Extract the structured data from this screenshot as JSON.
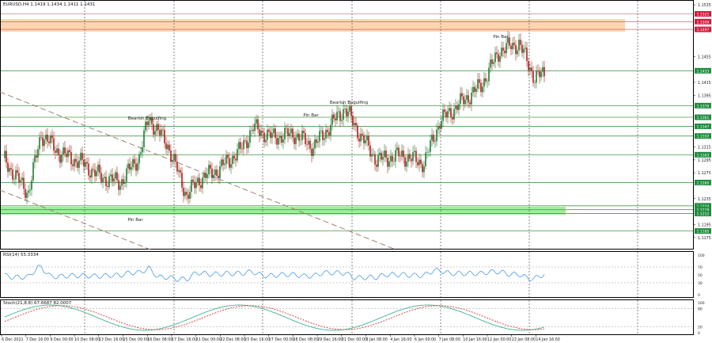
{
  "header": {
    "title": "EURUSD,H4  1.1419 1.1434 1.1411 1.1431"
  },
  "colors": {
    "bull": "#1e7d32",
    "bear": "#b71c1c",
    "level": "#4a9a4a",
    "zone_orange": "#ffd5b0",
    "zone_green": "#9cf09c",
    "red_label": "#d81b3c",
    "green_label": "#1e8e3e",
    "rsi": "#4d9be6",
    "stoch_main": "#3cb39a",
    "stoch_signal": "#d63a3a"
  },
  "chart_data": [
    {
      "type": "candlestick",
      "price_axis": {
        "ticks": [
          "1.1535",
          "1.1495",
          "1.1455",
          "1.1415",
          "1.1395",
          "1.1375",
          "1.1355",
          "1.1335",
          "1.1315",
          "1.1295",
          "1.1275",
          "1.1255",
          "1.1235",
          "1.1215",
          "1.1195",
          "1.1175"
        ],
        "range": [
          1.116,
          1.154
        ]
      },
      "time_axis": [
        "6 Dec 2021",
        "7 Dec 16:00",
        "9 Dec 00:00",
        "10 Dec 08:00",
        "13 Dec 16:00",
        "15 Dec 00:00",
        "16 Dec 08:00",
        "17 Dec 16:00",
        "21 Dec 00:00",
        "22 Dec 08:00",
        "23 Dec 16:00",
        "27 Dec 00:00",
        "28 Dec 08:00",
        "29 Dec 16:00",
        "31 Dec 00:00",
        "3 Jan 08:00",
        "4 Jan 16:00",
        "6 Jan 00:00",
        "7 Jan 08:00",
        "10 Jan 16:00",
        "12 Jan 00:00",
        "13 Jan 08:00",
        "14 Jan 16:00"
      ],
      "red_levels": [
        "1.1521",
        "1.1509",
        "1.1497"
      ],
      "green_levels": [
        "1.1433",
        "1.1379",
        "1.1361",
        "1.1347",
        "1.1332",
        "1.1303",
        "1.1260",
        "1.1224",
        "1.1218",
        "1.1212",
        "1.1185"
      ],
      "annotations": [
        "Bearish Engulfing",
        "Pin Bar",
        "Bearish Engulfing",
        "Pin Bar",
        "Pin Bar"
      ]
    },
    {
      "type": "line",
      "title": "RSI(14) 55.3334",
      "ticks": [
        "100",
        "70",
        "50",
        "30",
        "0"
      ]
    },
    {
      "type": "line",
      "title": "Stoch(21,8,8) 67.6687 82.0007",
      "ticks": [
        "100",
        "80",
        "20",
        "0"
      ]
    }
  ]
}
